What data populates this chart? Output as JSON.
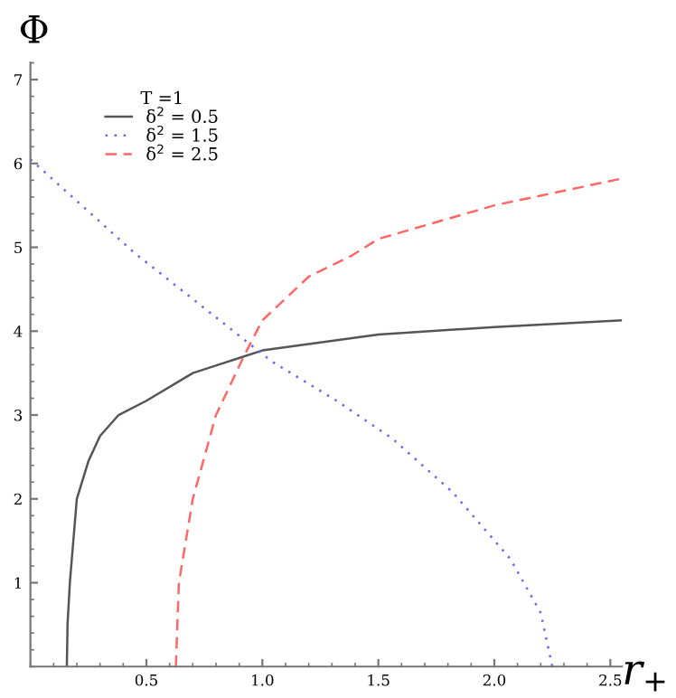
{
  "chart_data": {
    "type": "line",
    "xlabel": "r$_{+}$",
    "ylabel": "Φ",
    "legend_title": "T =1",
    "legend": "top left",
    "xlim": [
      0,
      2.55
    ],
    "ylim": [
      0,
      7.2
    ],
    "xticks": [
      0.5,
      {
        "value": 1,
        "label": "1.0"
      },
      1.5,
      {
        "value": 2,
        "label": "2.0"
      },
      2.5
    ],
    "yticks": [
      1,
      2,
      3,
      4,
      5,
      6,
      7
    ],
    "grid": false,
    "series": [
      {
        "name": "δ$^{2}$ = 0.5",
        "color": "#555555",
        "line_style": "solid",
        "x": [
          0.157,
          0.16,
          0.17,
          0.2,
          0.25,
          0.3,
          0.38,
          0.5,
          0.7,
          1.0,
          1.5,
          2.0,
          2.55
        ],
        "values": [
          0,
          0.5,
          1,
          2,
          2.45,
          2.75,
          3.0,
          3.17,
          3.5,
          3.77,
          3.96,
          4.05,
          4.13
        ]
      },
      {
        "name": "δ$^{2}$ = 1.5",
        "color": "#6666ee",
        "line_style": "dotted",
        "x": [
          0,
          0.45,
          1.04,
          1.32,
          1.56,
          1.82,
          2.07,
          2.2,
          2.25
        ],
        "values": [
          6.05,
          4.93,
          3.64,
          3.17,
          2.72,
          2.08,
          1.28,
          0.64,
          0
        ]
      },
      {
        "name": "δ$^{2}$ = 2.5",
        "color": "#ff6666",
        "line_style": "dashed",
        "x": [
          0.627,
          0.64,
          0.7,
          0.8,
          0.92,
          1.0,
          1.2,
          1.385,
          1.5,
          2.0,
          2.55
        ],
        "values": [
          0,
          1,
          2,
          3,
          3.7,
          4.13,
          4.65,
          4.9,
          5.1,
          5.5,
          5.82
        ]
      }
    ]
  }
}
